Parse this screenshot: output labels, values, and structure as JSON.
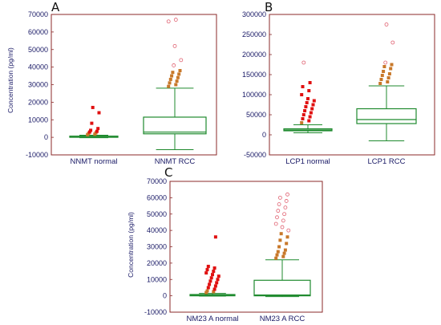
{
  "colors": {
    "frame": "#8b2a2a",
    "box": "#1f8a2e",
    "axis_text": "#1a1a66",
    "far_outlier": "#e01010",
    "near_outlier": "#c8782a",
    "open_marker_red": "#e06070",
    "open_marker_blue": "#6aa8c8",
    "jitter_shade": "#f4b8c8"
  },
  "chart_data": [
    {
      "type": "box",
      "panel": "A",
      "ylabel": "Concentration (pg/ml)",
      "ylim": [
        -10000,
        70000
      ],
      "yticks": [
        -10000,
        0,
        10000,
        20000,
        30000,
        40000,
        50000,
        60000,
        70000
      ],
      "ytick_labels": [
        "-10000",
        "0",
        "10000",
        "20000",
        "30000",
        "40000",
        "50000",
        "60000",
        "70000"
      ],
      "categories": [
        "NNMT normal",
        "NNMT RCC"
      ],
      "boxes": [
        {
          "label": "NNMT normal",
          "whisker_low": -200,
          "q1": 0,
          "median": 200,
          "q3": 700,
          "whisker_high": 1200,
          "outliers": [
            1500,
            1800,
            2200,
            2600,
            3000,
            3400,
            4000,
            5000,
            8000,
            14000,
            17000
          ]
        },
        {
          "label": "NNMT RCC",
          "whisker_low": -7000,
          "q1": 2000,
          "median": 3000,
          "q3": 11500,
          "whisker_high": 28000,
          "outliers": [
            29000,
            30000,
            31000,
            32000,
            33000,
            34000,
            35000,
            36000,
            37000,
            38000,
            41000,
            44000,
            52000,
            66000,
            67000
          ]
        }
      ]
    },
    {
      "type": "box",
      "panel": "B",
      "ylabel": "",
      "ylim": [
        -50000,
        300000
      ],
      "yticks": [
        -50000,
        0,
        50000,
        100000,
        150000,
        200000,
        250000,
        300000
      ],
      "ytick_labels": [
        "-50000",
        "0",
        "50000",
        "100000",
        "150000",
        "200000",
        "250000",
        "300000"
      ],
      "categories": [
        "LCP1 normal",
        "LCP1 RCC"
      ],
      "boxes": [
        {
          "label": "LCP1 normal",
          "whisker_low": 5000,
          "q1": 10000,
          "median": 12000,
          "q3": 15000,
          "whisker_high": 25000,
          "outliers": [
            30000,
            35000,
            40000,
            45000,
            50000,
            55000,
            60000,
            65000,
            70000,
            75000,
            80000,
            85000,
            90000,
            100000,
            110000,
            120000,
            130000,
            180000
          ]
        },
        {
          "label": "LCP1 RCC",
          "whisker_low": -15000,
          "q1": 28000,
          "median": 38000,
          "q3": 65000,
          "whisker_high": 122000,
          "outliers": [
            128000,
            132000,
            138000,
            142000,
            148000,
            152000,
            158000,
            165000,
            170000,
            175000,
            180000,
            230000,
            275000
          ]
        }
      ]
    },
    {
      "type": "box",
      "panel": "C",
      "ylabel": "Concentration (pg/ml)",
      "ylim": [
        -10000,
        70000
      ],
      "yticks": [
        -10000,
        0,
        10000,
        20000,
        30000,
        40000,
        50000,
        60000,
        70000
      ],
      "ytick_labels": [
        "-10000",
        "0",
        "10000",
        "20000",
        "30000",
        "40000",
        "50000",
        "60000",
        "70000"
      ],
      "categories": [
        "NM23 A normal",
        "NM23 A RCC"
      ],
      "boxes": [
        {
          "label": "NM23 A normal",
          "whisker_low": -200,
          "q1": 0,
          "median": 300,
          "q3": 800,
          "whisker_high": 1500,
          "outliers": [
            2000,
            2500,
            3000,
            4000,
            5000,
            6000,
            7000,
            8000,
            9000,
            10000,
            11000,
            12000,
            13000,
            14000,
            15000,
            16000,
            17000,
            18000,
            36000
          ]
        },
        {
          "label": "NM23 A RCC",
          "whisker_low": -500,
          "q1": 0,
          "median": 500,
          "q3": 9500,
          "whisker_high": 22000,
          "outliers": [
            23000,
            24000,
            25000,
            26000,
            27000,
            28000,
            30000,
            32000,
            34000,
            36000,
            38000,
            40000,
            42000,
            44000,
            46000,
            48000,
            50000,
            52000,
            54000,
            56000,
            58000,
            60000,
            62000
          ]
        }
      ]
    }
  ]
}
